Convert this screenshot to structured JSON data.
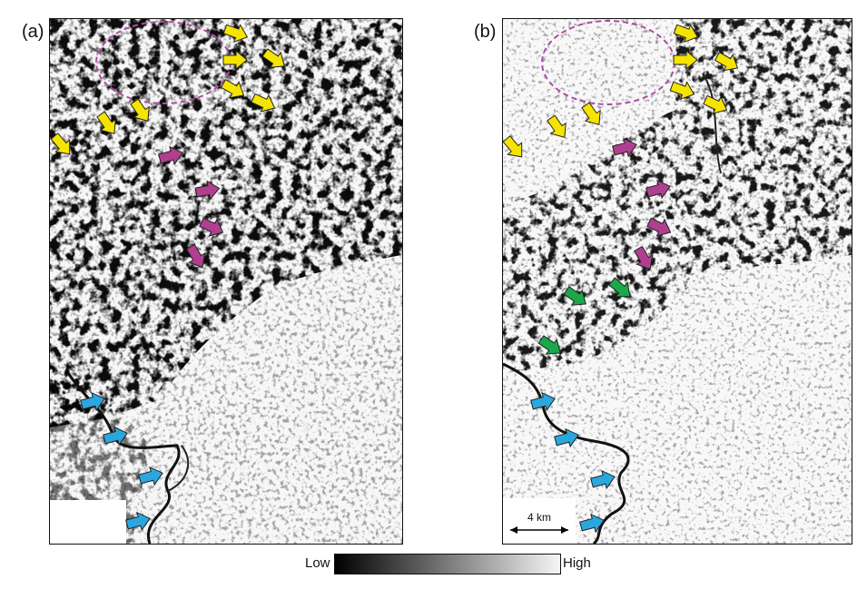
{
  "panels": [
    {
      "label": "(a)",
      "id": "a"
    },
    {
      "label": "(b)",
      "id": "b"
    }
  ],
  "scale_bar": {
    "text": "4 km"
  },
  "colorbar": {
    "low_label": "Low",
    "high_label": "High",
    "gradient_from": "#000000",
    "gradient_to": "#f5f5f5"
  },
  "annotation_colors": {
    "yellow_arrow": "#f5e400",
    "magenta_arrow": "#b0408f",
    "blue_arrow": "#2aa7df",
    "green_arrow": "#1aa84a",
    "ellipse": "#b04aa6"
  }
}
